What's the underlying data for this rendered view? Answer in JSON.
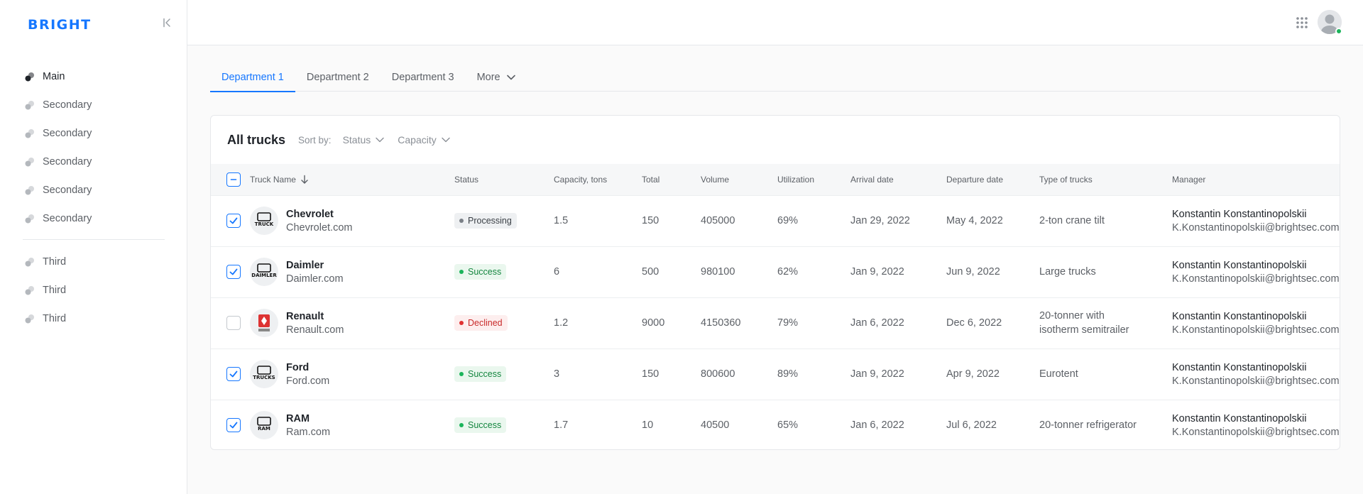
{
  "brand": {
    "logo": "BRIGHT",
    "accent": "#1677ff"
  },
  "sidebar": {
    "main": [
      {
        "label": "Main",
        "active": true
      },
      {
        "label": "Secondary"
      },
      {
        "label": "Secondary"
      },
      {
        "label": "Secondary"
      },
      {
        "label": "Secondary"
      },
      {
        "label": "Secondary"
      }
    ],
    "third": [
      {
        "label": "Third"
      },
      {
        "label": "Third"
      },
      {
        "label": "Third"
      }
    ]
  },
  "tabs": [
    {
      "label": "Department 1",
      "active": true
    },
    {
      "label": "Department 2"
    },
    {
      "label": "Department 3"
    },
    {
      "label": "More"
    }
  ],
  "card": {
    "title": "All trucks",
    "sort_by_label": "Sort by:",
    "sort_options": [
      "Status",
      "Capacity"
    ]
  },
  "table": {
    "columns": [
      "Truck Name",
      "Status",
      "Capacity, tons",
      "Total",
      "Volume",
      "Utilization",
      "Arrival date",
      "Departure date",
      "Type of trucks",
      "Manager"
    ],
    "rows": [
      {
        "checked": true,
        "logo": "TRUCK",
        "name": "Chevrolet",
        "url": "Chevrolet.com",
        "status": "Processing",
        "status_kind": "processing",
        "capacity": "1.5",
        "total": "150",
        "volume": "405000",
        "utilization": "69%",
        "arrival": "Jan 29, 2022",
        "departure": "May 4, 2022",
        "type": "2-ton crane tilt",
        "manager": "Konstantin Konstantinopolskii",
        "email": "K.Konstantinopolskii@brightsec.com"
      },
      {
        "checked": true,
        "logo": "DAIMLER",
        "name": "Daimler",
        "url": "Daimler.com",
        "status": "Success",
        "status_kind": "success",
        "capacity": "6",
        "total": "500",
        "volume": "980100",
        "utilization": "62%",
        "arrival": "Jan 9, 2022",
        "departure": "Jun 9, 2022",
        "type": "Large trucks",
        "manager": "Konstantin Konstantinopolskii",
        "email": "K.Konstantinopolskii@brightsec.com"
      },
      {
        "checked": false,
        "logo": "",
        "name": "Renault",
        "url": "Renault.com",
        "status": "Declined",
        "status_kind": "declined",
        "capacity": "1.2",
        "total": "9000",
        "volume": "4150360",
        "utilization": "79%",
        "arrival": "Jan 6, 2022",
        "departure": "Dec 6, 2022",
        "type": "20-tonner with isotherm semitrailer",
        "manager": "Konstantin Konstantinopolskii",
        "email": "K.Konstantinopolskii@brightsec.com"
      },
      {
        "checked": true,
        "logo": "TRUCKS",
        "name": "Ford",
        "url": "Ford.com",
        "status": "Success",
        "status_kind": "success",
        "capacity": "3",
        "total": "150",
        "volume": "800600",
        "utilization": "89%",
        "arrival": "Jan 9, 2022",
        "departure": "Apr 9, 2022",
        "type": "Eurotent",
        "manager": "Konstantin Konstantinopolskii",
        "email": "K.Konstantinopolskii@brightsec.com"
      },
      {
        "checked": true,
        "logo": "RAM",
        "name": "RAM",
        "url": "Ram.com",
        "status": "Success",
        "status_kind": "success",
        "capacity": "1.7",
        "total": "10",
        "volume": "40500",
        "utilization": "65%",
        "arrival": "Jan 6, 2022",
        "departure": "Jul 6, 2022",
        "type": "20-tonner refrigerator",
        "manager": "Konstantin Konstantinopolskii",
        "email": "K.Konstantinopolskii@brightsec.com"
      }
    ]
  }
}
